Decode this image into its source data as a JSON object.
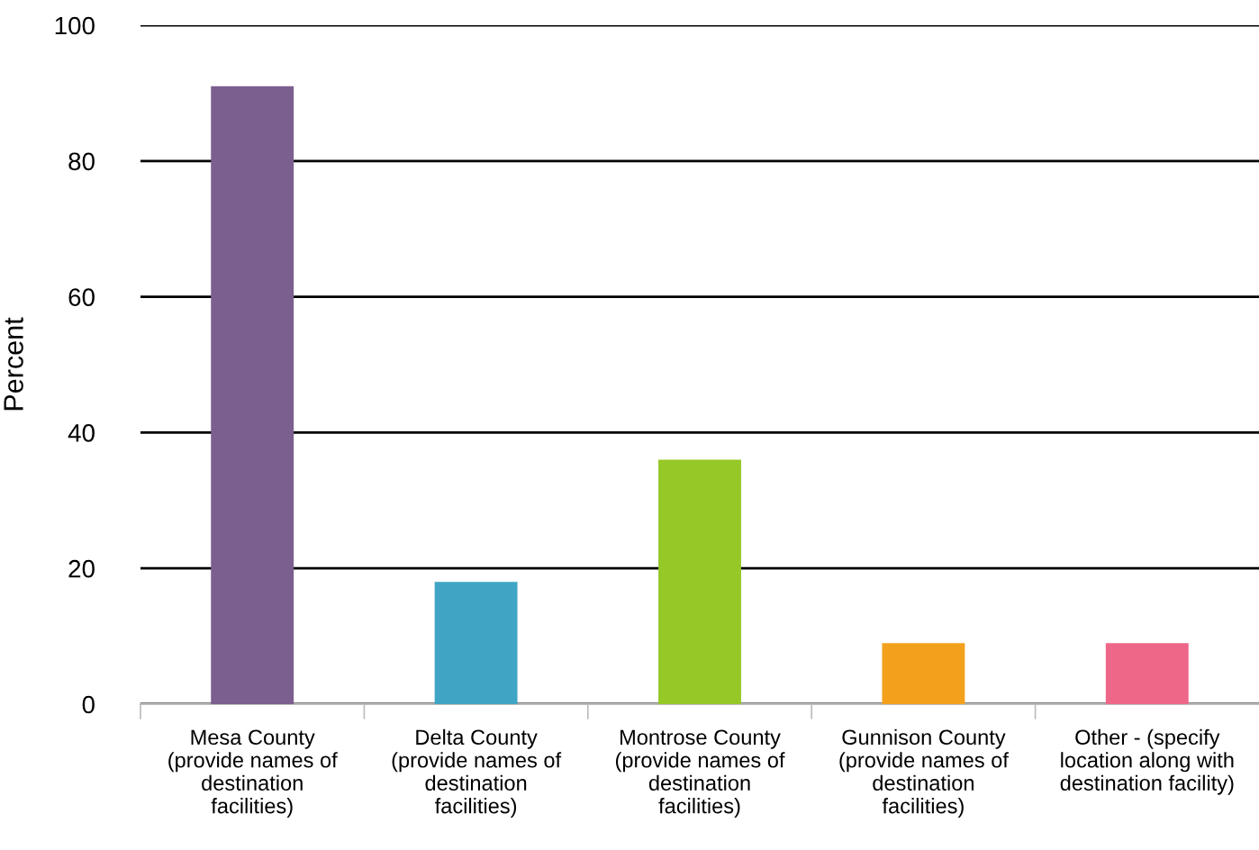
{
  "chart_data": {
    "type": "bar",
    "ylabel": "Percent",
    "categories": [
      "Mesa County\n(provide names of\ndestination\nfacilities)",
      "Delta County\n(provide names of\ndestination\nfacilities)",
      "Montrose County\n(provide names of\ndestination\nfacilities)",
      "Gunnison County\n(provide names of\ndestination\nfacilities)",
      "Other - (specify\nlocation along with\ndestination facility)"
    ],
    "values": [
      91,
      18,
      36,
      9,
      9
    ],
    "colors": [
      "#7b5f8e",
      "#40a5c4",
      "#96c828",
      "#f3a11c",
      "#ef6788"
    ],
    "ylim": [
      0,
      100
    ],
    "yticks": [
      0,
      20,
      40,
      60,
      80,
      100
    ],
    "grid": "y",
    "legend": false
  }
}
